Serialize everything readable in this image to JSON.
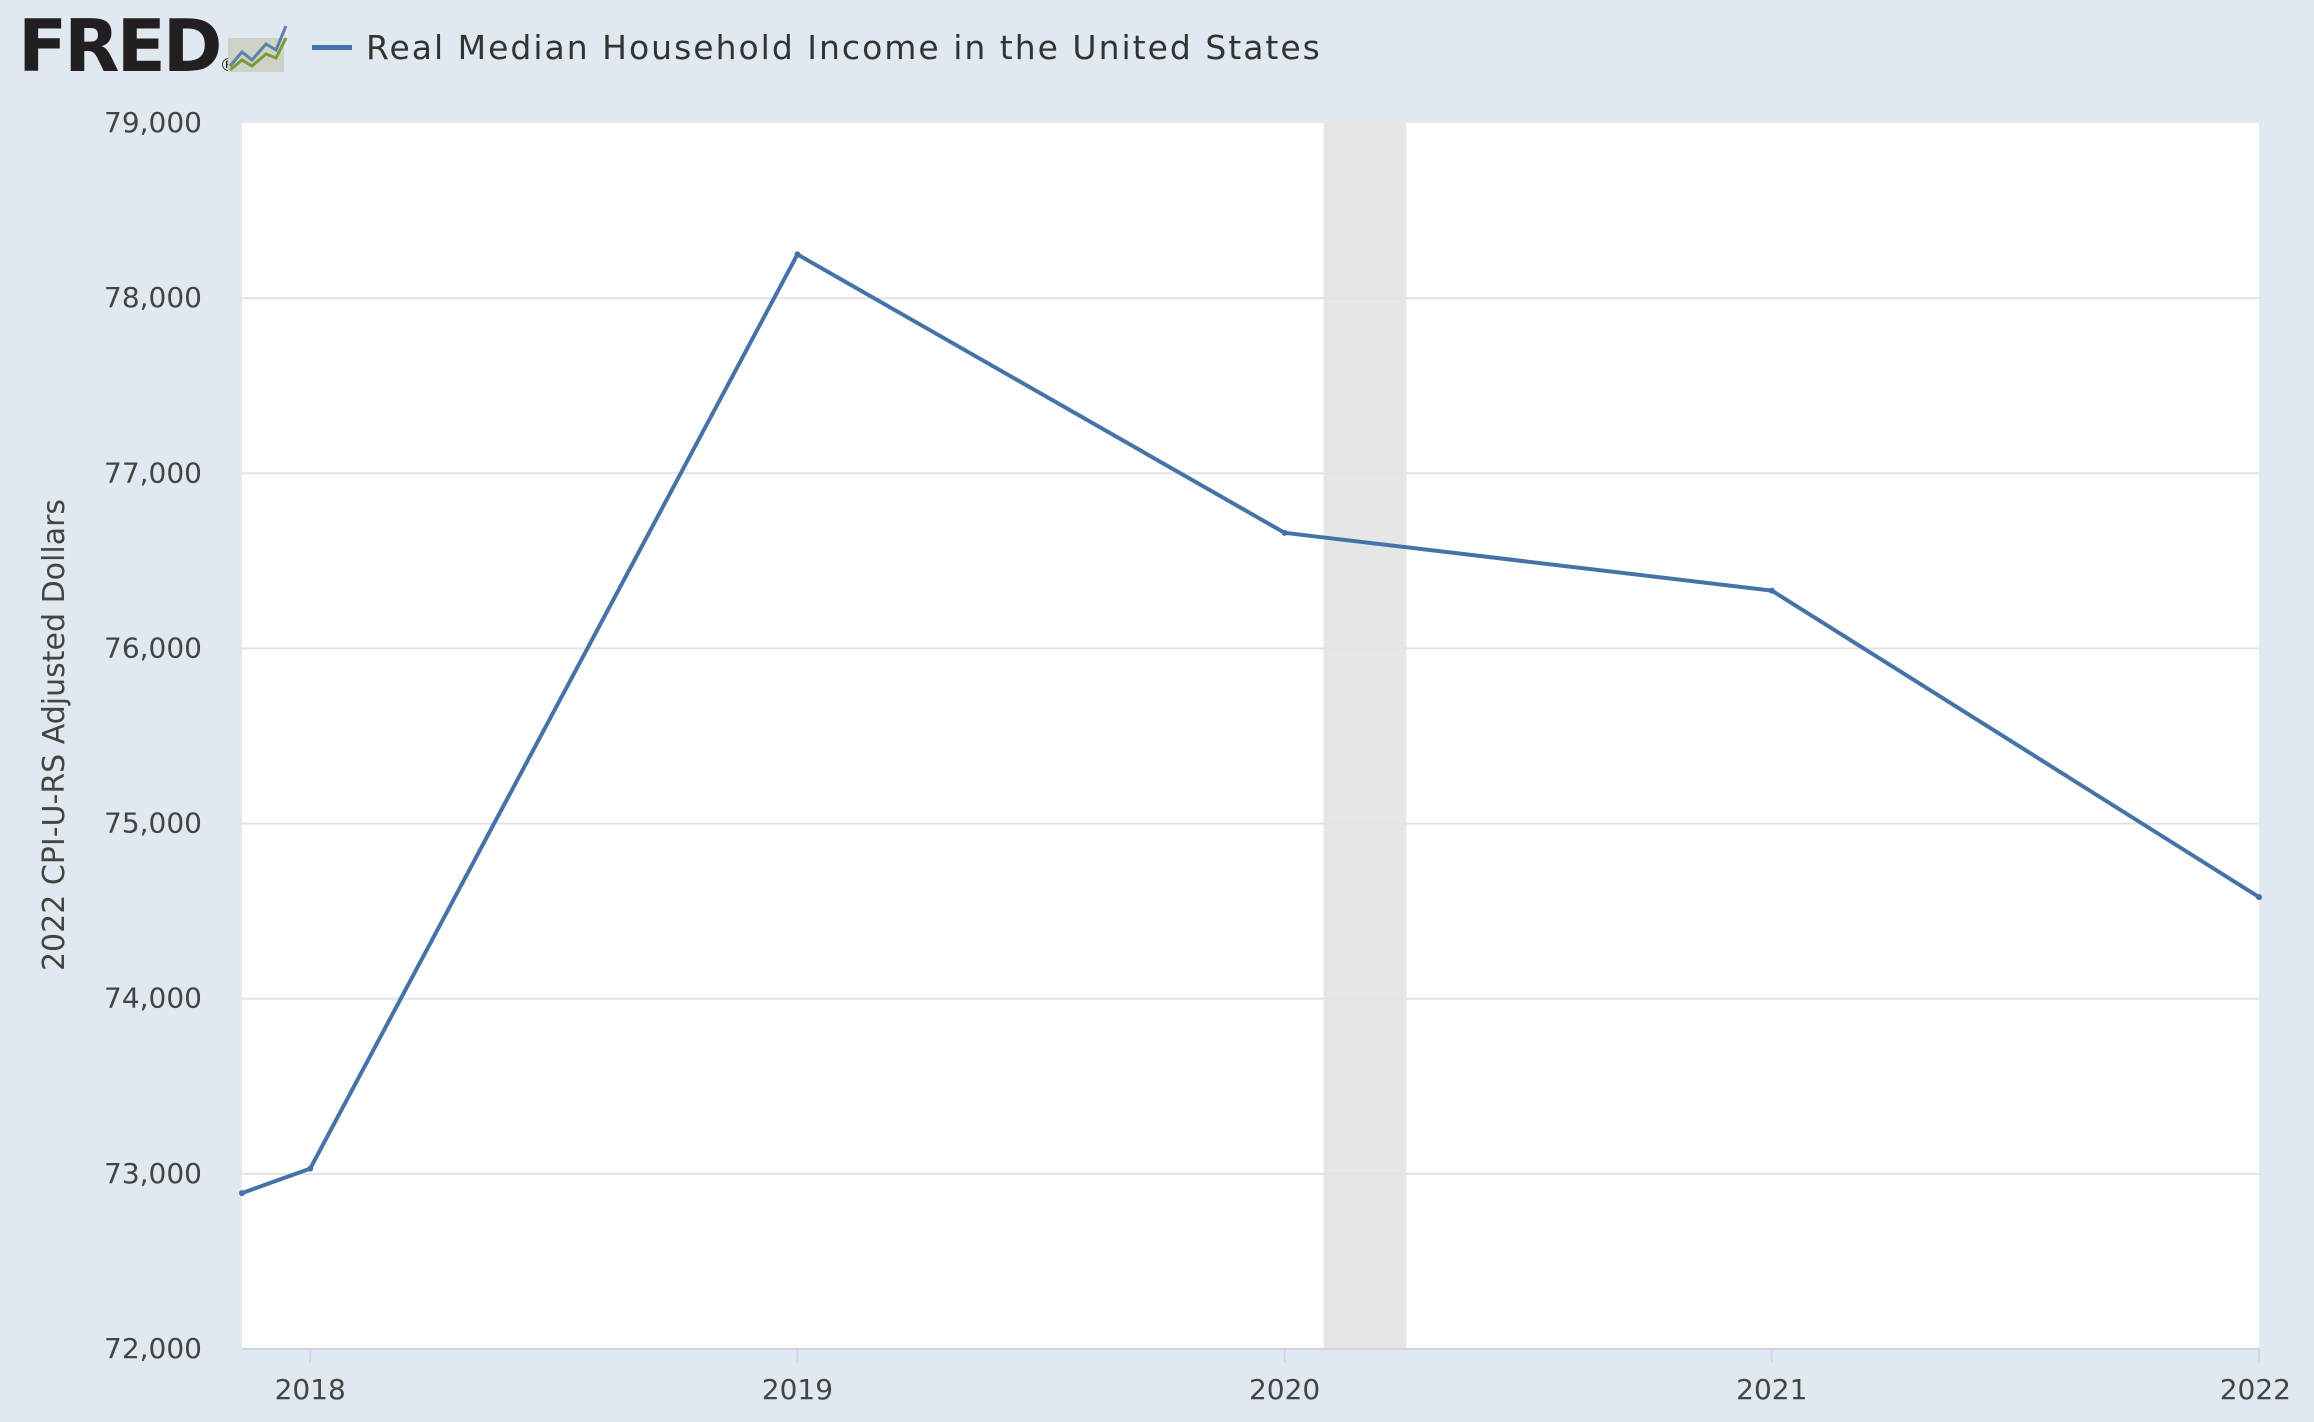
{
  "header": {
    "logo_text": "FRED",
    "logo_registered": "®",
    "logo_icon": "line-chart-icon",
    "legend_label": "Real Median Household Income in the United States"
  },
  "colors": {
    "page_background": "#e1e9f0",
    "plot_background": "#ffffff",
    "series": "#4572a7",
    "recession": "#e6e6e6",
    "gridline": "#e0e4ea"
  },
  "chart_data": {
    "type": "line",
    "title": "",
    "xlabel": "",
    "ylabel": "2022 CPI-U-RS Adjusted Dollars",
    "ylim": [
      72000,
      79000
    ],
    "xlim": [
      2017.86,
      2022.0
    ],
    "yticks": [
      72000,
      73000,
      74000,
      75000,
      76000,
      77000,
      78000,
      79000
    ],
    "ytick_labels": [
      "72,000",
      "73,000",
      "74,000",
      "75,000",
      "76,000",
      "77,000",
      "78,000",
      "79,000"
    ],
    "xticks": [
      2018,
      2019,
      2020,
      2021,
      2022
    ],
    "xtick_labels": [
      "2018",
      "2019",
      "2020",
      "2021",
      "2022"
    ],
    "grid": true,
    "legend": "top-left",
    "series": [
      {
        "name": "Real Median Household Income in the United States",
        "x": [
          2017.86,
          2018,
          2019,
          2020,
          2021,
          2022
        ],
        "y": [
          72890,
          73030,
          78250,
          76660,
          76330,
          74580
        ]
      }
    ],
    "shaded_regions": [
      {
        "label": "recession",
        "x_start": 2020.08,
        "x_end": 2020.25
      }
    ]
  }
}
